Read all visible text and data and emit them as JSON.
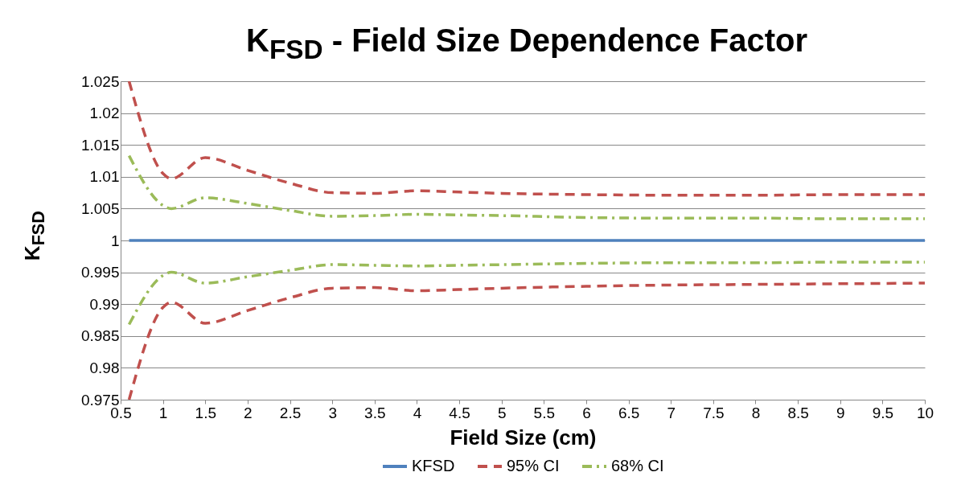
{
  "chart_data": {
    "type": "line",
    "title": "K$_{FSD}$ - Field Size Dependence Factor",
    "xlabel": "Field Size (cm)",
    "ylabel": "K$_{FSD}$",
    "x": [
      0.6,
      1,
      1.1,
      1.5,
      2,
      2.5,
      3,
      3.5,
      4,
      4.5,
      5,
      6,
      7,
      8,
      9,
      10
    ],
    "series": [
      {
        "name": "KFSD",
        "color": "#4f81bd",
        "line_style": "solid",
        "values": [
          1,
          1,
          1,
          1,
          1,
          1,
          1,
          1,
          1,
          1,
          1,
          1,
          1,
          1,
          1,
          1
        ]
      },
      {
        "name": "95% CI",
        "color": "#c0504d",
        "line_style": "dashed",
        "values": [
          1.025,
          1.0105,
          1.0097,
          1.013,
          1.011,
          1.009,
          1.0075,
          1.0074,
          1.0078,
          1.0076,
          1.0074,
          1.0072,
          1.0071,
          1.0071,
          1.0072,
          1.0072
        ]
      },
      {
        "color": "#c0504d",
        "line_style": "dashed",
        "values": [
          0.975,
          0.9895,
          0.9903,
          0.987,
          0.989,
          0.991,
          0.9925,
          0.9926,
          0.9921,
          0.9923,
          0.9925,
          0.9928,
          0.993,
          0.9931,
          0.9932,
          0.9933
        ]
      },
      {
        "name": "68% CI",
        "color": "#9bbb59",
        "line_style": "dashdot",
        "values": [
          1.0133,
          1.0055,
          1.005,
          1.0067,
          1.0058,
          1.0047,
          1.0038,
          1.0039,
          1.0041,
          1.004,
          1.0039,
          1.0036,
          1.0035,
          1.0035,
          1.0034,
          1.0034
        ]
      },
      {
        "color": "#9bbb59",
        "line_style": "dashdot",
        "values": [
          0.9868,
          0.9945,
          0.995,
          0.9933,
          0.9943,
          0.9953,
          0.9962,
          0.9961,
          0.996,
          0.9961,
          0.9962,
          0.9964,
          0.9965,
          0.9965,
          0.9966,
          0.9966
        ]
      }
    ],
    "xlim": [
      0.5,
      10
    ],
    "xticks": [
      0.5,
      1,
      1.5,
      2,
      2.5,
      3,
      3.5,
      4,
      4.5,
      5,
      5.5,
      6,
      6.5,
      7,
      7.5,
      8,
      8.5,
      9,
      9.5,
      10
    ],
    "ylim": [
      0.975,
      1.025
    ],
    "yticks": [
      0.975,
      0.98,
      0.985,
      0.99,
      0.995,
      1,
      1.005,
      1.01,
      1.015,
      1.02,
      1.025
    ],
    "grid": "y",
    "legend": "bottom"
  }
}
